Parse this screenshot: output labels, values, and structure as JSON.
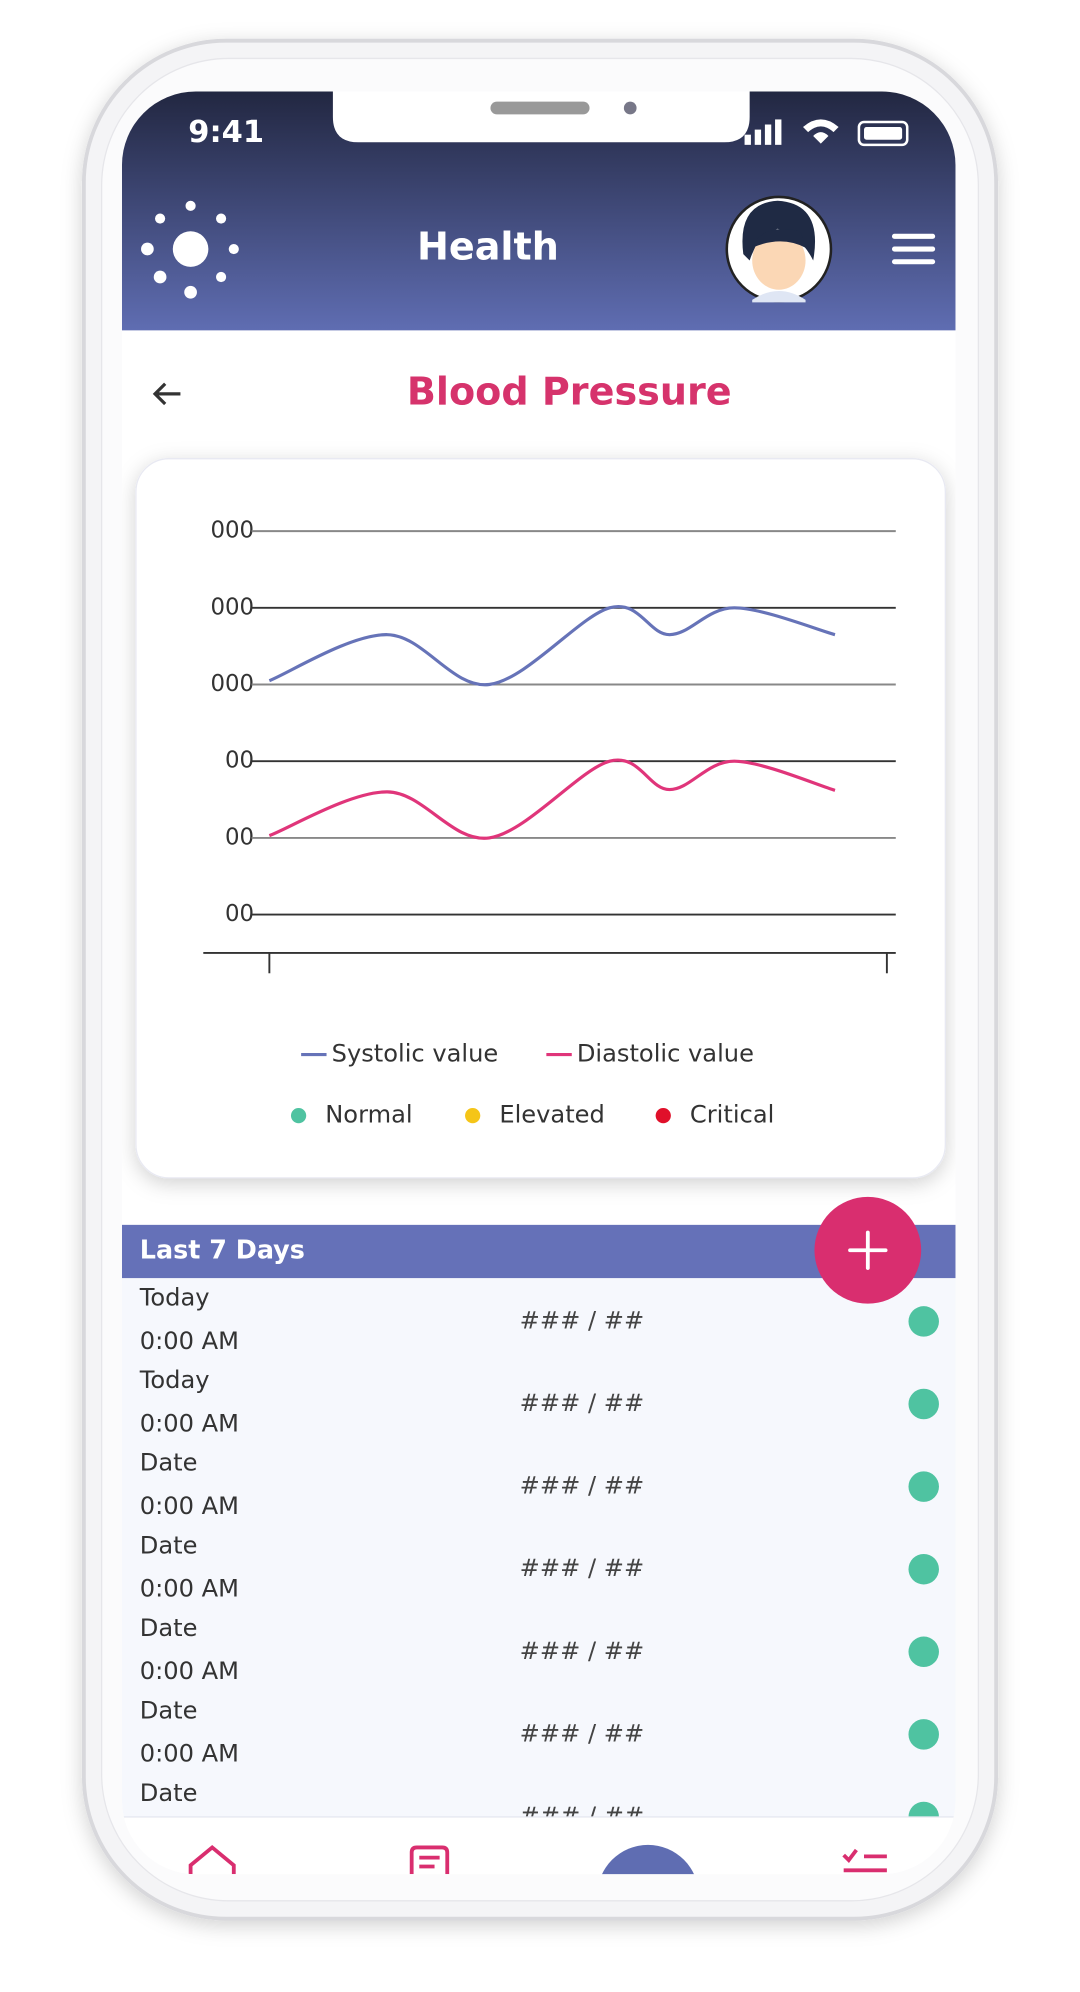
{
  "status_bar": {
    "time": "9:41"
  },
  "header": {
    "title": "Health"
  },
  "page": {
    "title": "Blood Pressure"
  },
  "chart_data": {
    "type": "line",
    "x": [
      0,
      19.1,
      35.6,
      55.1,
      64.8,
      75.3,
      91.6
    ],
    "xlim": [
      0,
      100
    ],
    "ylim": [
      -0.5,
      5
    ],
    "yticks": [
      {
        "value": 5,
        "label": "000"
      },
      {
        "value": 4,
        "label": "000"
      },
      {
        "value": 3,
        "label": "000"
      },
      {
        "value": 2,
        "label": "00"
      },
      {
        "value": 1,
        "label": "00"
      },
      {
        "value": 0,
        "label": "00"
      }
    ],
    "grid": true,
    "series": [
      {
        "name": "Systolic value",
        "color": "#6673b8",
        "values": [
          3.05,
          3.65,
          3.0,
          4.0,
          3.65,
          4.0,
          3.65
        ]
      },
      {
        "name": "Diastolic value",
        "color": "#e0357a",
        "values": [
          1.03,
          1.6,
          1.0,
          2.0,
          1.63,
          2.0,
          1.62
        ]
      }
    ]
  },
  "status_legend": [
    {
      "name": "Normal",
      "color": "#4fc3a1"
    },
    {
      "name": "Elevated",
      "color": "#f5c518"
    },
    {
      "name": "Critical",
      "color": "#e0102a"
    }
  ],
  "list": {
    "title": "Last 7 Days",
    "rows": [
      {
        "date": "Today",
        "time": "0:00 AM",
        "reading": "### / ##"
      },
      {
        "date": "Today",
        "time": "0:00 AM",
        "reading": "### / ##"
      },
      {
        "date": "Date",
        "time": "0:00 AM",
        "reading": "### / ##"
      },
      {
        "date": "Date",
        "time": "0:00 AM",
        "reading": "### / ##"
      },
      {
        "date": "Date",
        "time": "0:00 AM",
        "reading": "### / ##"
      },
      {
        "date": "Date",
        "time": "0:00 AM",
        "reading": "### / ##"
      },
      {
        "date": "Date",
        "reading": "### / ##"
      }
    ]
  }
}
